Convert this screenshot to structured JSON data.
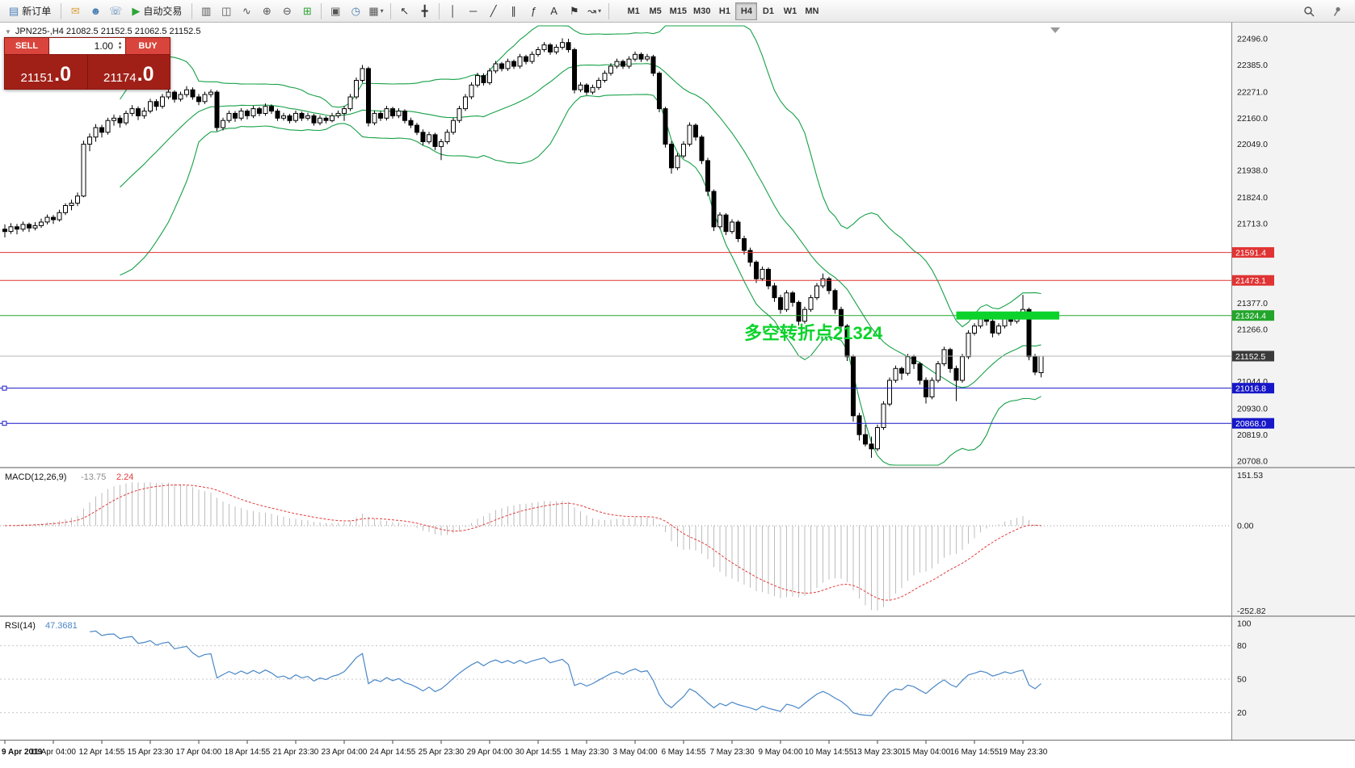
{
  "ui": {
    "dropdown_glyph": "▾",
    "spin_up": "▴",
    "spin_down": "▾",
    "collapse_glyph": "▼"
  },
  "toolbar": {
    "items": [
      {
        "name": "new-order-button",
        "glyph": "▤",
        "color": "#4a7fb5",
        "label": "新订单"
      },
      {
        "sep": true
      },
      {
        "name": "mail-icon",
        "glyph": "✉",
        "color": "#d9a23c"
      },
      {
        "name": "community-icon",
        "glyph": "☻",
        "color": "#4a7fb5"
      },
      {
        "name": "support-icon",
        "glyph": "☏",
        "color": "#4a7fb5"
      },
      {
        "name": "auto-trading-button",
        "glyph": "▶",
        "color": "#2fa436",
        "label": "自动交易"
      },
      {
        "sep": true
      },
      {
        "name": "bar-chart-icon",
        "glyph": "▥",
        "color": "#555555"
      },
      {
        "name": "candlestick-chart-icon",
        "glyph": "◫",
        "color": "#555555"
      },
      {
        "name": "line-chart-icon",
        "glyph": "∿",
        "color": "#555555"
      },
      {
        "name": "zoom-in-icon",
        "glyph": "⊕",
        "color": "#555555"
      },
      {
        "name": "zoom-out-icon",
        "glyph": "⊖",
        "color": "#555555"
      },
      {
        "name": "grid-icon",
        "glyph": "⊞",
        "color": "#2fa436"
      },
      {
        "sep": true
      },
      {
        "name": "tile-windows-icon",
        "glyph": "▣",
        "color": "#555555"
      },
      {
        "name": "period-clock-icon",
        "glyph": "◷",
        "color": "#4a7fb5"
      },
      {
        "name": "templates-icon",
        "glyph": "▦",
        "color": "#555555",
        "dropdown": true
      },
      {
        "sep": true
      },
      {
        "name": "cursor-icon",
        "glyph": "↖",
        "color": "#333333"
      },
      {
        "name": "crosshair-icon",
        "glyph": "╋",
        "color": "#333333"
      },
      {
        "sep": true
      },
      {
        "name": "vertical-line-tool",
        "glyph": "│",
        "color": "#333333"
      },
      {
        "name": "horizontal-line-tool",
        "glyph": "─",
        "color": "#333333"
      },
      {
        "name": "trendline-tool",
        "glyph": "╱",
        "color": "#333333"
      },
      {
        "name": "channel-tool",
        "glyph": "∥",
        "color": "#333333"
      },
      {
        "name": "fibonacci-tool",
        "glyph": "ƒ",
        "color": "#333333"
      },
      {
        "name": "text-tool",
        "glyph": "A",
        "color": "#333333"
      },
      {
        "name": "label-tool",
        "glyph": "⚑",
        "color": "#333333"
      },
      {
        "name": "arrows-tool",
        "glyph": "↝",
        "color": "#333333",
        "dropdown": true
      },
      {
        "sep": true
      }
    ],
    "timeframes": [
      "M1",
      "M5",
      "M15",
      "M30",
      "H1",
      "H4",
      "D1",
      "W1",
      "MN"
    ],
    "active_timeframe": "H4"
  },
  "trade_panel": {
    "sell_label": "SELL",
    "buy_label": "BUY",
    "volume": "1.00",
    "sell_price_int": "21151",
    "sell_price_frac": ".0",
    "buy_price_int": "21174",
    "buy_price_frac": ".0",
    "colors": {
      "buttons": "#d9453c",
      "price_panel": "#a02018"
    }
  },
  "chart": {
    "header": "JPN225-,H4  21082.5 21152.5 21062.5 21152.5"
  },
  "chart_data": {
    "type": "candlestick",
    "symbol": "JPN225-",
    "timeframe": "H4",
    "ohlc_display": {
      "open": 21082.5,
      "high": 21152.5,
      "low": 21062.5,
      "close": 21152.5
    },
    "current_price": 21152.5,
    "candles_format": "[open,high,low,close]",
    "candles": [
      [
        21690,
        21710,
        21655,
        21680
      ],
      [
        21680,
        21715,
        21670,
        21700
      ],
      [
        21700,
        21712,
        21668,
        21690
      ],
      [
        21690,
        21722,
        21680,
        21710
      ],
      [
        21710,
        21718,
        21678,
        21695
      ],
      [
        21695,
        21720,
        21685,
        21705
      ],
      [
        21705,
        21735,
        21695,
        21720
      ],
      [
        21720,
        21752,
        21710,
        21740
      ],
      [
        21740,
        21750,
        21712,
        21730
      ],
      [
        21730,
        21772,
        21722,
        21760
      ],
      [
        21760,
        21800,
        21750,
        21790
      ],
      [
        21790,
        21815,
        21770,
        21800
      ],
      [
        21800,
        21845,
        21788,
        21830
      ],
      [
        21830,
        22065,
        21825,
        22050
      ],
      [
        22050,
        22095,
        22020,
        22080
      ],
      [
        22080,
        22135,
        22060,
        22120
      ],
      [
        22120,
        22132,
        22078,
        22100
      ],
      [
        22100,
        22162,
        22090,
        22150
      ],
      [
        22150,
        22175,
        22128,
        22160
      ],
      [
        22160,
        22172,
        22120,
        22140
      ],
      [
        22140,
        22192,
        22130,
        22180
      ],
      [
        22180,
        22215,
        22168,
        22200
      ],
      [
        22200,
        22210,
        22152,
        22170
      ],
      [
        22170,
        22205,
        22158,
        22190
      ],
      [
        22190,
        22242,
        22180,
        22230
      ],
      [
        22230,
        22240,
        22192,
        22210
      ],
      [
        22210,
        22262,
        22200,
        22250
      ],
      [
        22250,
        22285,
        22240,
        22270
      ],
      [
        22270,
        22278,
        22226,
        22240
      ],
      [
        22240,
        22272,
        22230,
        22260
      ],
      [
        22260,
        22295,
        22248,
        22280
      ],
      [
        22280,
        22290,
        22238,
        22250
      ],
      [
        22250,
        22262,
        22215,
        22230
      ],
      [
        22230,
        22272,
        22220,
        22260
      ],
      [
        22260,
        22282,
        22248,
        22270
      ],
      [
        22270,
        22278,
        22105,
        22120
      ],
      [
        22120,
        22162,
        22108,
        22150
      ],
      [
        22150,
        22192,
        22140,
        22180
      ],
      [
        22180,
        22190,
        22145,
        22160
      ],
      [
        22160,
        22202,
        22150,
        22190
      ],
      [
        22190,
        22198,
        22155,
        22170
      ],
      [
        22170,
        22212,
        22160,
        22200
      ],
      [
        22200,
        22208,
        22168,
        22180
      ],
      [
        22180,
        22222,
        22170,
        22210
      ],
      [
        22210,
        22218,
        22178,
        22190
      ],
      [
        22190,
        22200,
        22148,
        22160
      ],
      [
        22160,
        22182,
        22150,
        22170
      ],
      [
        22170,
        22178,
        22138,
        22150
      ],
      [
        22150,
        22192,
        22140,
        22180
      ],
      [
        22180,
        22188,
        22148,
        22160
      ],
      [
        22160,
        22182,
        22150,
        22170
      ],
      [
        22170,
        22178,
        22128,
        22140
      ],
      [
        22140,
        22172,
        22130,
        22160
      ],
      [
        22160,
        22168,
        22138,
        22150
      ],
      [
        22150,
        22182,
        22142,
        22170
      ],
      [
        22170,
        22192,
        22160,
        22180
      ],
      [
        22180,
        22212,
        22148,
        22200
      ],
      [
        22200,
        22262,
        22190,
        22250
      ],
      [
        22250,
        22332,
        22240,
        22320
      ],
      [
        22320,
        22385,
        22310,
        22370
      ],
      [
        22370,
        22378,
        22125,
        22140
      ],
      [
        22140,
        22192,
        22130,
        22180
      ],
      [
        22180,
        22190,
        22148,
        22160
      ],
      [
        22160,
        22212,
        22150,
        22200
      ],
      [
        22200,
        22208,
        22158,
        22170
      ],
      [
        22170,
        22202,
        22160,
        22190
      ],
      [
        22190,
        22198,
        22138,
        22150
      ],
      [
        22150,
        22162,
        22118,
        22130
      ],
      [
        22130,
        22140,
        22088,
        22100
      ],
      [
        22100,
        22112,
        22045,
        22060
      ],
      [
        22060,
        22102,
        22050,
        22090
      ],
      [
        22090,
        22098,
        22025,
        22040
      ],
      [
        22040,
        22072,
        21982,
        22060
      ],
      [
        22060,
        22112,
        22050,
        22100
      ],
      [
        22100,
        22162,
        22090,
        22150
      ],
      [
        22150,
        22212,
        22140,
        22200
      ],
      [
        22200,
        22262,
        22190,
        22250
      ],
      [
        22250,
        22312,
        22240,
        22300
      ],
      [
        22300,
        22352,
        22290,
        22340
      ],
      [
        22340,
        22350,
        22298,
        22310
      ],
      [
        22310,
        22372,
        22300,
        22360
      ],
      [
        22360,
        22402,
        22350,
        22390
      ],
      [
        22390,
        22398,
        22358,
        22370
      ],
      [
        22370,
        22412,
        22360,
        22400
      ],
      [
        22400,
        22408,
        22368,
        22380
      ],
      [
        22380,
        22432,
        22370,
        22420
      ],
      [
        22420,
        22428,
        22388,
        22400
      ],
      [
        22400,
        22442,
        22390,
        22430
      ],
      [
        22430,
        22462,
        22420,
        22450
      ],
      [
        22450,
        22482,
        22440,
        22470
      ],
      [
        22470,
        22478,
        22428,
        22440
      ],
      [
        22440,
        22472,
        22430,
        22460
      ],
      [
        22460,
        22498,
        22450,
        22480
      ],
      [
        22480,
        22496,
        22438,
        22450
      ],
      [
        22450,
        22458,
        22265,
        22280
      ],
      [
        22280,
        22312,
        22270,
        22300
      ],
      [
        22300,
        22308,
        22258,
        22270
      ],
      [
        22270,
        22302,
        22260,
        22290
      ],
      [
        22290,
        22332,
        22280,
        22320
      ],
      [
        22320,
        22362,
        22310,
        22350
      ],
      [
        22350,
        22392,
        22340,
        22380
      ],
      [
        22380,
        22412,
        22370,
        22400
      ],
      [
        22400,
        22408,
        22368,
        22380
      ],
      [
        22380,
        22422,
        22370,
        22410
      ],
      [
        22410,
        22442,
        22400,
        22430
      ],
      [
        22430,
        22438,
        22398,
        22410
      ],
      [
        22410,
        22432,
        22400,
        22420
      ],
      [
        22420,
        22428,
        22338,
        22350
      ],
      [
        22350,
        22358,
        22185,
        22200
      ],
      [
        22200,
        22208,
        22035,
        22050
      ],
      [
        22050,
        22062,
        21925,
        21950
      ],
      [
        21950,
        22012,
        21940,
        22000
      ],
      [
        22000,
        22062,
        21990,
        22050
      ],
      [
        22050,
        22142,
        22040,
        22130
      ],
      [
        22130,
        22138,
        22065,
        22080
      ],
      [
        22080,
        22088,
        21965,
        21980
      ],
      [
        21980,
        21992,
        21830,
        21850
      ],
      [
        21850,
        21858,
        21682,
        21700
      ],
      [
        21700,
        21762,
        21690,
        21750
      ],
      [
        21750,
        21758,
        21665,
        21680
      ],
      [
        21680,
        21732,
        21670,
        21720
      ],
      [
        21720,
        21728,
        21635,
        21650
      ],
      [
        21650,
        21662,
        21582,
        21600
      ],
      [
        21600,
        21612,
        21532,
        21550
      ],
      [
        21550,
        21558,
        21462,
        21480
      ],
      [
        21480,
        21532,
        21470,
        21520
      ],
      [
        21520,
        21528,
        21435,
        21450
      ],
      [
        21450,
        21462,
        21382,
        21400
      ],
      [
        21400,
        21412,
        21332,
        21350
      ],
      [
        21350,
        21432,
        21340,
        21420
      ],
      [
        21420,
        21428,
        21362,
        21380
      ],
      [
        21380,
        21388,
        21282,
        21300
      ],
      [
        21300,
        21362,
        21290,
        21350
      ],
      [
        21350,
        21412,
        21340,
        21400
      ],
      [
        21400,
        21462,
        21390,
        21450
      ],
      [
        21450,
        21502,
        21440,
        21480
      ],
      [
        21480,
        21488,
        21415,
        21430
      ],
      [
        21430,
        21438,
        21332,
        21350
      ],
      [
        21350,
        21362,
        21262,
        21280
      ],
      [
        21280,
        21288,
        21132,
        21150
      ],
      [
        21150,
        21158,
        20875,
        20900
      ],
      [
        20900,
        20912,
        20795,
        20820
      ],
      [
        20820,
        20862,
        20770,
        20780
      ],
      [
        20780,
        20812,
        20722,
        20760
      ],
      [
        20760,
        20862,
        20750,
        20850
      ],
      [
        20850,
        20962,
        20840,
        20950
      ],
      [
        20950,
        21062,
        20940,
        21050
      ],
      [
        21050,
        21112,
        21040,
        21100
      ],
      [
        21100,
        21108,
        21052,
        21080
      ],
      [
        21080,
        21162,
        21070,
        21150
      ],
      [
        21150,
        21158,
        21098,
        21120
      ],
      [
        21120,
        21128,
        21032,
        21050
      ],
      [
        21050,
        21062,
        20952,
        20980
      ],
      [
        20980,
        21062,
        20970,
        21050
      ],
      [
        21050,
        21132,
        21040,
        21120
      ],
      [
        21120,
        21192,
        21110,
        21180
      ],
      [
        21180,
        21188,
        21082,
        21100
      ],
      [
        21100,
        21112,
        20962,
        21050
      ],
      [
        21050,
        21162,
        21040,
        21150
      ],
      [
        21150,
        21262,
        21140,
        21250
      ],
      [
        21250,
        21292,
        21240,
        21280
      ],
      [
        21280,
        21332,
        21270,
        21320
      ],
      [
        21320,
        21328,
        21282,
        21300
      ],
      [
        21300,
        21312,
        21232,
        21250
      ],
      [
        21250,
        21292,
        21240,
        21280
      ],
      [
        21280,
        21332,
        21270,
        21320
      ],
      [
        21320,
        21328,
        21282,
        21300
      ],
      [
        21300,
        21342,
        21290,
        21330
      ],
      [
        21330,
        21412,
        21320,
        21350
      ],
      [
        21350,
        21358,
        21135,
        21150
      ],
      [
        21150,
        21162,
        21072,
        21085
      ],
      [
        21082.5,
        21152.5,
        21062.5,
        21152.5
      ]
    ],
    "bollinger": {
      "period": 20,
      "deviation": 2,
      "color": "#17a047"
    },
    "levels": [
      {
        "price": 21591.4,
        "color": "#e03333"
      },
      {
        "price": 21473.1,
        "color": "#e03333"
      },
      {
        "price": 21324.4,
        "color": "#22a52b"
      },
      {
        "price": 21016.8,
        "color": "#1717c9",
        "selected": true
      },
      {
        "price": 20868.0,
        "color": "#1717c9",
        "selected": true
      }
    ],
    "highlight_rect": {
      "price": 21324.4,
      "start_index": 157,
      "end_index": 174,
      "color": "#0bd32b"
    },
    "annotation": {
      "text": "多空转折点21324",
      "color": "#0bd32b",
      "index": 122,
      "price": 21225
    },
    "price_axis": {
      "labels": [
        22496,
        22385,
        22271,
        22160,
        22049,
        21938,
        21824,
        21713,
        21377,
        21266,
        21044,
        20930,
        20819,
        20708
      ]
    },
    "indicators": {
      "macd": {
        "label": "MACD(12,26,9)",
        "value": "-13.75",
        "signal_value": "2.24",
        "axis": [
          151.53,
          0,
          -252.82
        ],
        "histogram_color": "#bdbdbd",
        "histogram_value_color": "#8c8c8c",
        "signal_color": "#e23b3b"
      },
      "rsi": {
        "label": "RSI(14)",
        "value": "47.3681",
        "axis": [
          100,
          80,
          50,
          20
        ],
        "levels": [
          80,
          50,
          20
        ],
        "color": "#4a87c7"
      }
    },
    "time_labels": [
      "9 Apr 2019",
      "11 Apr 04:00",
      "12 Apr 14:55",
      "15 Apr 23:30",
      "17 Apr 04:00",
      "18 Apr 14:55",
      "21 Apr 23:30",
      "23 Apr 04:00",
      "24 Apr 14:55",
      "25 Apr 23:30",
      "29 Apr 04:00",
      "30 Apr 14:55",
      "1 May 23:30",
      "3 May 04:00",
      "6 May 14:55",
      "7 May 23:30",
      "9 May 04:00",
      "10 May 14:55",
      "13 May 23:30",
      "15 May 04:00",
      "16 May 14:55",
      "19 May 23:30"
    ]
  }
}
